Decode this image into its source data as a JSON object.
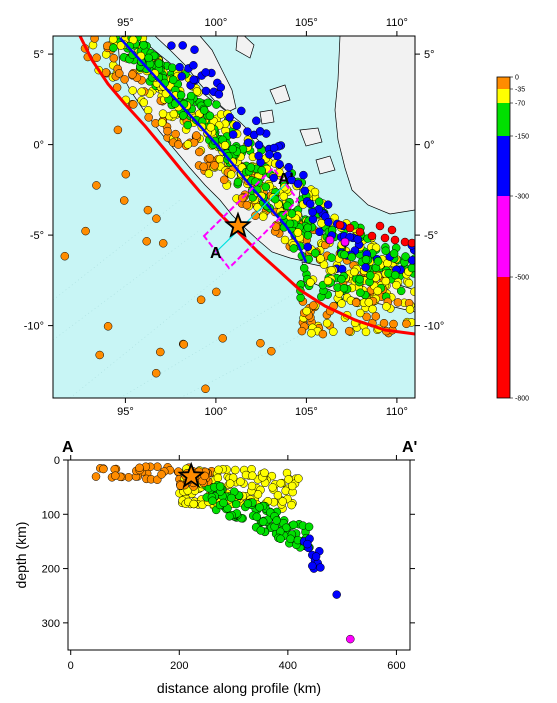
{
  "map": {
    "lon_range": [
      91,
      111
    ],
    "lat_range": [
      -14,
      6
    ],
    "lon_ticks": [
      "95°",
      "100°",
      "105°",
      "110°"
    ],
    "lat_ticks": [
      "5°",
      "0°",
      "-5°",
      "-10°"
    ],
    "profile_start_label": "A",
    "profile_end_label": "A'",
    "colors": {
      "ocean": "#c8f5f5",
      "land": "#f2f2f2",
      "trench": "#ff0000",
      "fault": "#0000ff",
      "box": "#ff00ff"
    }
  },
  "colorbar": {
    "labels": [
      "0",
      "-35",
      "-70",
      "-150",
      "-300",
      "-500",
      "-800"
    ],
    "bins": [
      {
        "color": "#ff8c00"
      },
      {
        "color": "#ffff00"
      },
      {
        "color": "#00e000"
      },
      {
        "color": "#0000ff"
      },
      {
        "color": "#ff00ff"
      },
      {
        "color": "#ff0000"
      }
    ]
  },
  "profile": {
    "title_left": "A",
    "title_right": "A'",
    "x_label": "distance along profile (km)",
    "y_label": "depth (km)",
    "x_ticks": [
      "0",
      "200",
      "400",
      "600"
    ],
    "y_ticks": [
      "0",
      "100",
      "200",
      "300"
    ],
    "x_range": [
      -5,
      625
    ],
    "y_range": [
      0,
      350
    ],
    "mainshock": {
      "x": 222,
      "y": 30
    }
  }
}
